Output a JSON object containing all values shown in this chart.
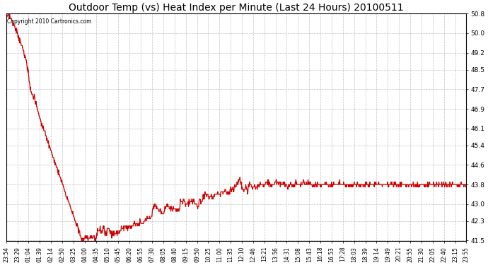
{
  "title": "Outdoor Temp (vs) Heat Index per Minute (Last 24 Hours) 20100511",
  "copyright_text": "Copyright 2010 Cartronics.com",
  "line_color": "#cc0000",
  "background_color": "#ffffff",
  "grid_color": "#bbbbbb",
  "title_fontsize": 10,
  "ylim": [
    41.5,
    50.8
  ],
  "yticks": [
    41.5,
    42.3,
    43.0,
    43.8,
    44.6,
    45.4,
    46.1,
    46.9,
    47.7,
    48.5,
    49.2,
    50.0,
    50.8
  ],
  "xtick_labels": [
    "23:54",
    "23:29",
    "01:04",
    "01:39",
    "02:14",
    "02:50",
    "03:25",
    "04:00",
    "04:35",
    "05:10",
    "05:45",
    "06:20",
    "06:55",
    "07:30",
    "08:05",
    "08:40",
    "09:15",
    "09:50",
    "10:25",
    "11:00",
    "11:35",
    "12:10",
    "12:46",
    "13:21",
    "13:56",
    "14:31",
    "15:08",
    "15:43",
    "16:18",
    "16:53",
    "17:28",
    "18:03",
    "18:39",
    "19:14",
    "19:49",
    "20:21",
    "20:55",
    "21:30",
    "22:05",
    "22:40",
    "23:15",
    "23:55"
  ],
  "n_points": 1440
}
